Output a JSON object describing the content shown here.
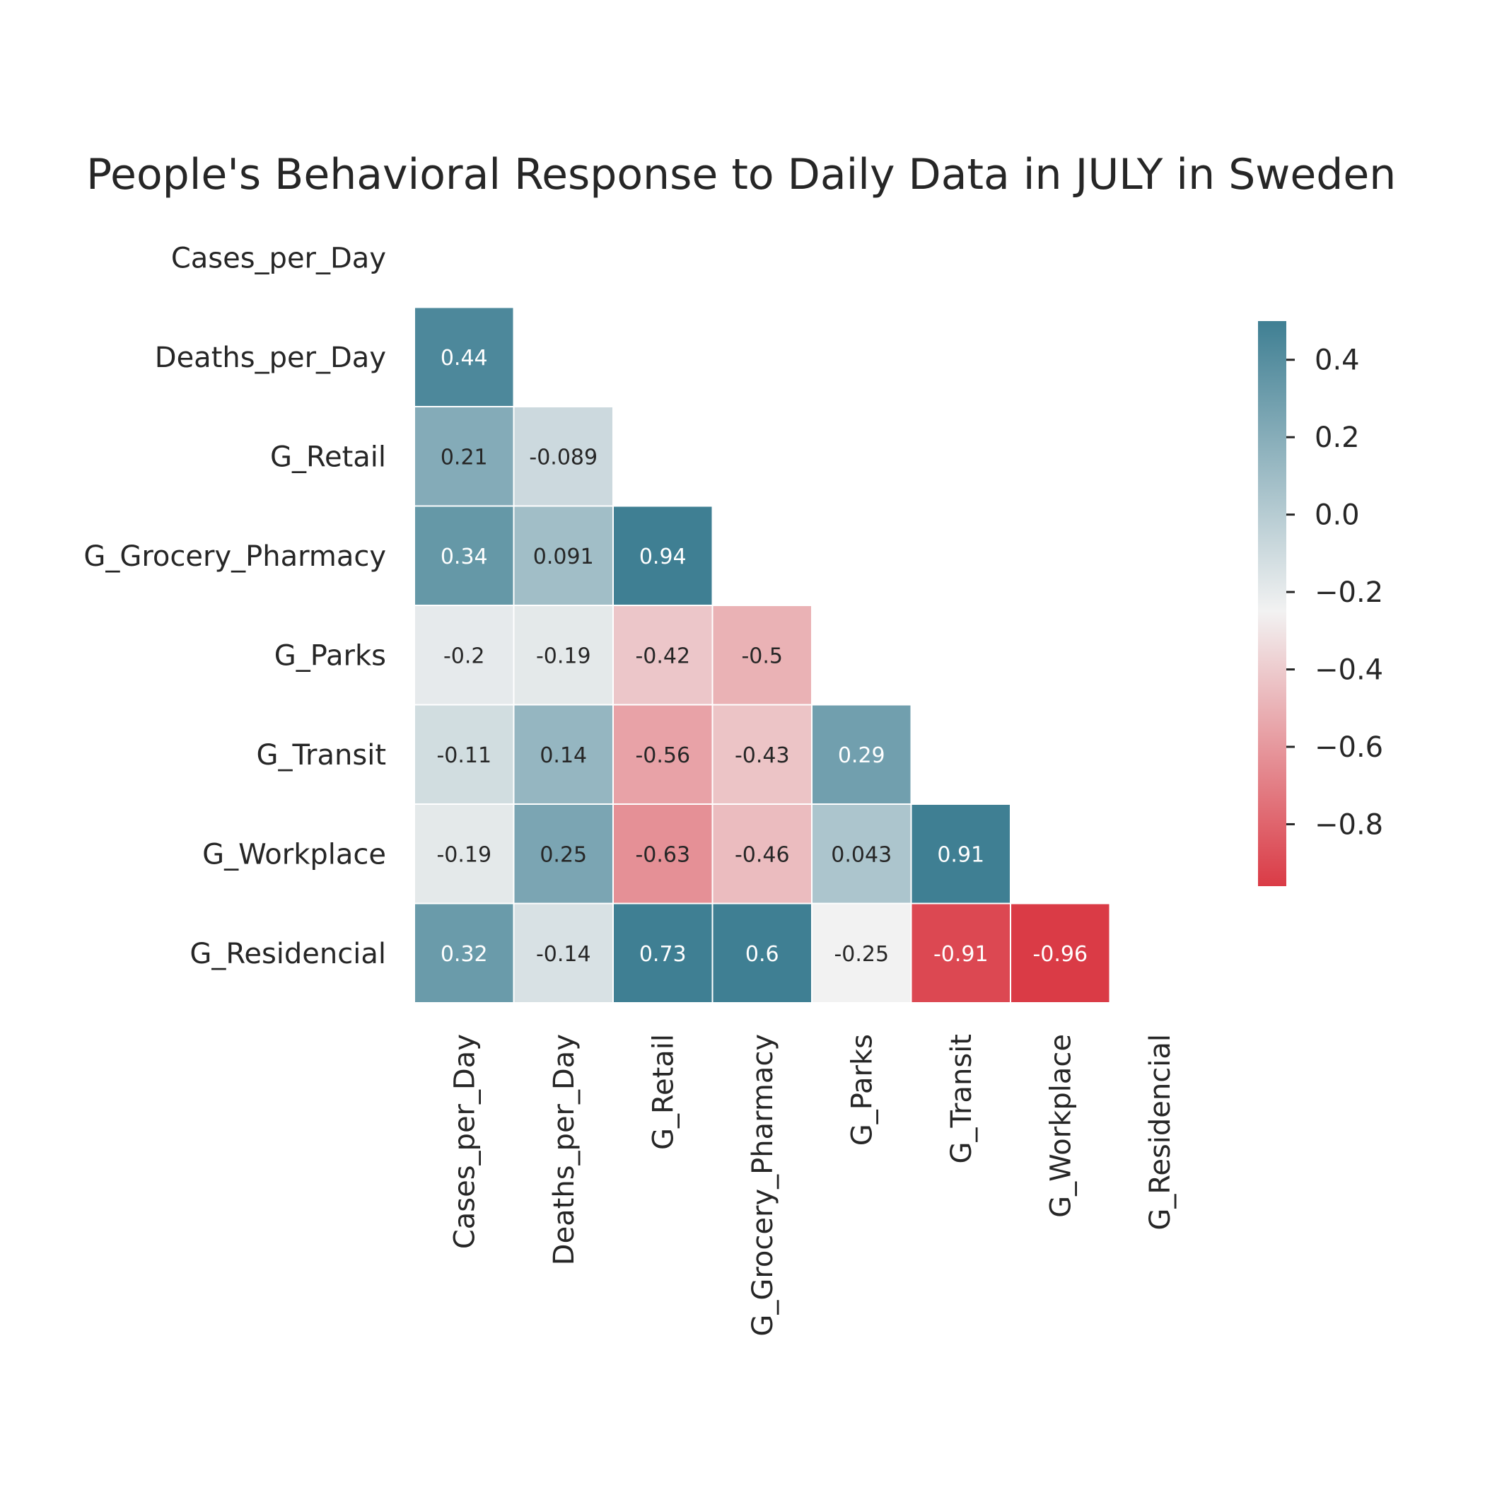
{
  "chart_data": {
    "type": "heatmap",
    "title": "People's Behavioral Response to Daily Data in JULY in Sweden",
    "xlabel": "",
    "ylabel": "",
    "row_labels": [
      "Cases_per_Day",
      "Deaths_per_Day",
      "G_Retail",
      "G_Grocery_Pharmacy",
      "G_Parks",
      "G_Transit",
      "G_Workplace",
      "G_Residencial"
    ],
    "col_labels": [
      "Cases_per_Day",
      "Deaths_per_Day",
      "G_Retail",
      "G_Grocery_Pharmacy",
      "G_Parks",
      "G_Transit",
      "G_Workplace",
      "G_Residencial"
    ],
    "mask": "upper-triangle-including-diagonal",
    "values": [
      [
        null,
        null,
        null,
        null,
        null,
        null,
        null,
        null
      ],
      [
        0.44,
        null,
        null,
        null,
        null,
        null,
        null,
        null
      ],
      [
        0.21,
        -0.089,
        null,
        null,
        null,
        null,
        null,
        null
      ],
      [
        0.34,
        0.091,
        0.94,
        null,
        null,
        null,
        null,
        null
      ],
      [
        -0.2,
        -0.19,
        -0.42,
        -0.5,
        null,
        null,
        null,
        null
      ],
      [
        -0.11,
        0.14,
        -0.56,
        -0.43,
        0.29,
        null,
        null,
        null
      ],
      [
        -0.19,
        0.25,
        -0.63,
        -0.46,
        0.043,
        0.91,
        null,
        null
      ],
      [
        0.32,
        -0.14,
        0.73,
        0.6,
        -0.25,
        -0.91,
        -0.96,
        null
      ]
    ],
    "value_labels": [
      [
        null,
        null,
        null,
        null,
        null,
        null,
        null,
        null
      ],
      [
        "0.44",
        null,
        null,
        null,
        null,
        null,
        null,
        null
      ],
      [
        "0.21",
        "-0.089",
        null,
        null,
        null,
        null,
        null,
        null
      ],
      [
        "0.34",
        "0.091",
        "0.94",
        null,
        null,
        null,
        null,
        null
      ],
      [
        "-0.2",
        "-0.19",
        "-0.42",
        "-0.5",
        null,
        null,
        null,
        null
      ],
      [
        "-0.11",
        "0.14",
        "-0.56",
        "-0.43",
        "0.29",
        null,
        null,
        null
      ],
      [
        "-0.19",
        "0.25",
        "-0.63",
        "-0.46",
        "0.043",
        "0.91",
        null,
        null
      ],
      [
        "0.32",
        "-0.14",
        "0.73",
        "0.6",
        "-0.25",
        "-0.91",
        "-0.96",
        null
      ]
    ],
    "colorbar": {
      "vmin": -0.96,
      "vmax": 0.5,
      "ticks": [
        0.4,
        0.2,
        0.0,
        -0.2,
        -0.4,
        -0.6,
        -0.8
      ],
      "tick_labels": [
        "0.4",
        "0.2",
        "0.0",
        "−0.2",
        "−0.4",
        "−0.6",
        "−0.8"
      ],
      "center": -0.25,
      "color_negative": "#da3b46",
      "color_center": "#f2f2f2",
      "color_positive": "#3f7f93"
    },
    "grid": false
  }
}
